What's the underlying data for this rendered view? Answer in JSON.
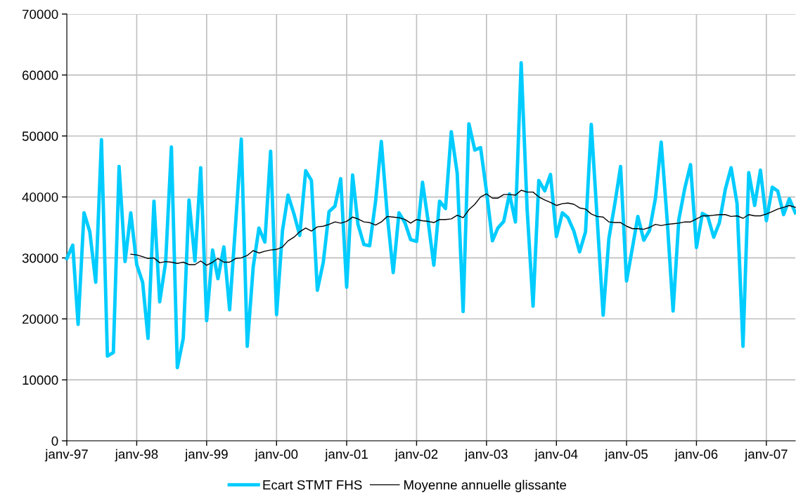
{
  "chart_data": {
    "type": "line",
    "x": [
      "1997-01",
      "1997-02",
      "1997-03",
      "1997-04",
      "1997-05",
      "1997-06",
      "1997-07",
      "1997-08",
      "1997-09",
      "1997-10",
      "1997-11",
      "1997-12",
      "1998-01",
      "1998-02",
      "1998-03",
      "1998-04",
      "1998-05",
      "1998-06",
      "1998-07",
      "1998-08",
      "1998-09",
      "1998-10",
      "1998-11",
      "1998-12",
      "1999-01",
      "1999-02",
      "1999-03",
      "1999-04",
      "1999-05",
      "1999-06",
      "1999-07",
      "1999-08",
      "1999-09",
      "1999-10",
      "1999-11",
      "1999-12",
      "2000-01",
      "2000-02",
      "2000-03",
      "2000-04",
      "2000-05",
      "2000-06",
      "2000-07",
      "2000-08",
      "2000-09",
      "2000-10",
      "2000-11",
      "2000-12",
      "2001-01",
      "2001-02",
      "2001-03",
      "2001-04",
      "2001-05",
      "2001-06",
      "2001-07",
      "2001-08",
      "2001-09",
      "2001-10",
      "2001-11",
      "2001-12",
      "2002-01",
      "2002-02",
      "2002-03",
      "2002-04",
      "2002-05",
      "2002-06",
      "2002-07",
      "2002-08",
      "2002-09",
      "2002-10",
      "2002-11",
      "2002-12",
      "2003-01",
      "2003-02",
      "2003-03",
      "2003-04",
      "2003-05",
      "2003-06",
      "2003-07",
      "2003-08",
      "2003-09",
      "2003-10",
      "2003-11",
      "2003-12",
      "2004-01",
      "2004-02",
      "2004-03",
      "2004-04",
      "2004-05",
      "2004-06",
      "2004-07",
      "2004-08",
      "2004-09",
      "2004-10",
      "2004-11",
      "2004-12",
      "2005-01",
      "2005-02",
      "2005-03",
      "2005-04",
      "2005-05",
      "2005-06",
      "2005-07",
      "2005-08",
      "2005-09",
      "2005-10",
      "2005-11",
      "2005-12",
      "2006-01",
      "2006-02",
      "2006-03",
      "2006-04",
      "2006-05",
      "2006-06",
      "2006-07",
      "2006-08",
      "2006-09",
      "2006-10",
      "2006-11",
      "2006-12",
      "2007-01",
      "2007-02",
      "2007-03",
      "2007-04",
      "2007-05",
      "2007-06"
    ],
    "series": [
      {
        "name": "Ecart STMT FHS",
        "color": "#00ccff",
        "values": [
          29900,
          32100,
          19100,
          37400,
          34300,
          26000,
          49400,
          13900,
          14500,
          45000,
          29400,
          37400,
          28900,
          26000,
          16800,
          39300,
          22800,
          29300,
          48200,
          12000,
          16800,
          39500,
          29500,
          44800,
          19700,
          31300,
          26600,
          31800,
          21500,
          35500,
          49500,
          15500,
          28500,
          34900,
          32600,
          47500,
          20700,
          34500,
          40300,
          37200,
          33700,
          44300,
          42700,
          24700,
          29300,
          37600,
          38500,
          43000,
          25200,
          43600,
          35500,
          32200,
          32000,
          39300,
          49100,
          37000,
          27600,
          37400,
          35800,
          33000,
          32700,
          42400,
          36300,
          28800,
          39300,
          38100,
          50700,
          43900,
          21200,
          52000,
          47700,
          48100,
          40900,
          32800,
          34900,
          36000,
          40500,
          35900,
          62000,
          38000,
          22100,
          42700,
          41000,
          43700,
          33500,
          37400,
          36600,
          34400,
          31000,
          34300,
          51900,
          36300,
          20600,
          33200,
          38900,
          45000,
          26200,
          31700,
          36800,
          32900,
          34500,
          39800,
          49000,
          36300,
          21300,
          36300,
          41400,
          45300,
          31700,
          37300,
          36800,
          33400,
          35800,
          41300,
          44800,
          38900,
          15500,
          44000,
          38600,
          44400,
          36100,
          41600,
          41000,
          37100,
          39700,
          37400
        ]
      },
      {
        "name": "Moyenne annuelle glissante",
        "color": "#000000",
        "values": [
          null,
          null,
          null,
          null,
          null,
          null,
          null,
          null,
          null,
          null,
          null,
          30600,
          30500,
          30200,
          29900,
          30000,
          29200,
          29400,
          29300,
          29100,
          29300,
          28900,
          28900,
          29500,
          28800,
          29300,
          29900,
          29300,
          29300,
          29900,
          30000,
          30400,
          31200,
          30800,
          31100,
          31300,
          31400,
          31800,
          32800,
          33400,
          34300,
          34900,
          34400,
          35100,
          35200,
          35500,
          35900,
          35700,
          36000,
          36700,
          36400,
          35900,
          35800,
          35400,
          35900,
          36800,
          36700,
          36600,
          36300,
          35700,
          36300,
          36100,
          36000,
          35800,
          36300,
          36300,
          36400,
          37000,
          36600,
          37900,
          38800,
          40000,
          40500,
          39800,
          39800,
          40400,
          40400,
          40300,
          41100,
          40800,
          40800,
          40000,
          39500,
          39100,
          38600,
          38900,
          39000,
          38800,
          38200,
          38000,
          37200,
          36800,
          36700,
          35900,
          35800,
          35800,
          35200,
          34800,
          34800,
          34700,
          35000,
          35500,
          35300,
          35500,
          35600,
          35700,
          35900,
          35900,
          36400,
          36900,
          36900,
          37000,
          37100,
          37100,
          36800,
          36900,
          36500,
          37100,
          36900,
          36900,
          37200,
          37600,
          38000,
          38300,
          38600,
          38300
        ]
      }
    ],
    "xlim": [
      "1997-01",
      "2007-06"
    ],
    "xticks": [
      {
        "value": "1997-01",
        "label": "janv-97"
      },
      {
        "value": "1998-01",
        "label": "janv-98"
      },
      {
        "value": "1999-01",
        "label": "janv-99"
      },
      {
        "value": "2000-01",
        "label": "janv-00"
      },
      {
        "value": "2001-01",
        "label": "janv-01"
      },
      {
        "value": "2002-01",
        "label": "janv-02"
      },
      {
        "value": "2003-01",
        "label": "janv-03"
      },
      {
        "value": "2004-01",
        "label": "janv-04"
      },
      {
        "value": "2005-01",
        "label": "janv-05"
      },
      {
        "value": "2006-01",
        "label": "janv-06"
      },
      {
        "value": "2007-01",
        "label": "janv-07"
      }
    ],
    "ylim": [
      0,
      70000
    ],
    "yticks": [
      0,
      10000,
      20000,
      30000,
      40000,
      50000,
      60000,
      70000
    ],
    "grid": true,
    "legend": "bottom"
  }
}
